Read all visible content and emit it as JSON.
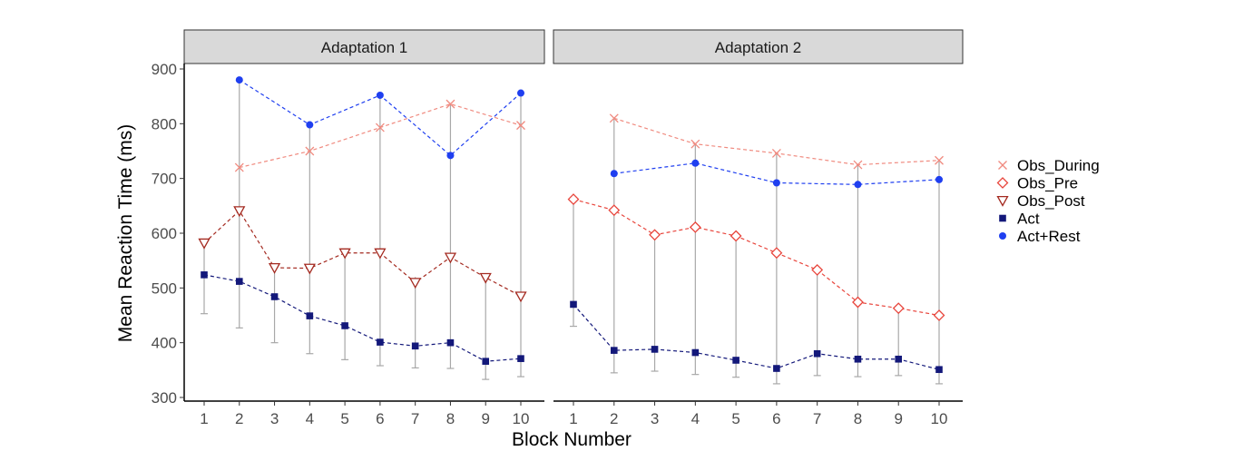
{
  "chart_data": {
    "type": "line",
    "ylabel": "Mean Reaction Time (ms)",
    "xlabel": "Block Number",
    "ylim": [
      300,
      900
    ],
    "xlim": [
      1,
      10
    ],
    "yticks": [
      300,
      400,
      500,
      600,
      700,
      800,
      900
    ],
    "xticks": [
      1,
      2,
      3,
      4,
      5,
      6,
      7,
      8,
      9,
      10
    ],
    "grid": false,
    "legend_position": "right",
    "legend_order": [
      "Obs_During",
      "Obs_Pre",
      "Obs_Post",
      "Act",
      "Act+Rest"
    ],
    "series_style": {
      "Obs_During": {
        "color": "#f08a7f",
        "marker": "x"
      },
      "Obs_Pre": {
        "color": "#e8453c",
        "marker": "diamond-open"
      },
      "Obs_Post": {
        "color": "#a42a20",
        "marker": "triangle-down-open"
      },
      "Act": {
        "color": "#13187a",
        "marker": "square"
      },
      "Act+Rest": {
        "color": "#1f3ff0",
        "marker": "circle"
      }
    },
    "panels": [
      {
        "title": "Adaptation 1",
        "series": [
          {
            "name": "Obs_During",
            "x": [
              2,
              4,
              6,
              8,
              10
            ],
            "y": [
              720,
              750,
              793,
              836,
              797
            ],
            "err_low": [
              null,
              636,
              667,
              600,
              657
            ],
            "err_high": [
              null,
              null,
              null,
              null,
              null
            ]
          },
          {
            "name": "Obs_Post",
            "x": [
              1,
              2,
              3,
              4,
              5,
              6,
              7,
              8,
              9,
              10
            ],
            "y": [
              582,
              641,
              537,
              536,
              564,
              564,
              510,
              556,
              519,
              485
            ],
            "err_low": [
              null,
              542,
              null,
              null,
              479,
              460,
              425,
              461,
              430,
              410
            ],
            "err_high": [
              null,
              null,
              null,
              null,
              null,
              null,
              null,
              null,
              null,
              null
            ]
          },
          {
            "name": "Act",
            "x": [
              1,
              2,
              3,
              4,
              5,
              6,
              7,
              8,
              9,
              10
            ],
            "y": [
              524,
              512,
              484,
              449,
              431,
              401,
              394,
              400,
              366,
              371
            ],
            "err_low": [
              453,
              427,
              400,
              380,
              369,
              358,
              354,
              353,
              333,
              338
            ],
            "err_high": [
              null,
              null,
              null,
              null,
              null,
              null,
              null,
              null,
              null,
              null
            ]
          },
          {
            "name": "Act+Rest",
            "x": [
              2,
              4,
              6,
              8,
              10
            ],
            "y": [
              880,
              798,
              852,
              742,
              856
            ],
            "err_low": [
              null,
              null,
              null,
              null,
              null
            ],
            "err_high": [
              null,
              null,
              null,
              null,
              null
            ]
          }
        ],
        "error_bar_extents": [
          {
            "x": 1,
            "low": 453,
            "high": 590
          },
          {
            "x": 2,
            "low": 427,
            "high": 880
          },
          {
            "x": 3,
            "low": 400,
            "high": 545
          },
          {
            "x": 4,
            "low": 380,
            "high": 798
          },
          {
            "x": 5,
            "low": 369,
            "high": 572
          },
          {
            "x": 6,
            "low": 358,
            "high": 852
          },
          {
            "x": 7,
            "low": 354,
            "high": 520
          },
          {
            "x": 8,
            "low": 353,
            "high": 836
          },
          {
            "x": 9,
            "low": 333,
            "high": 525
          },
          {
            "x": 10,
            "low": 338,
            "high": 856
          }
        ]
      },
      {
        "title": "Adaptation 2",
        "series": [
          {
            "name": "Obs_During",
            "x": [
              2,
              4,
              6,
              8,
              10
            ],
            "y": [
              810,
              763,
              746,
              725,
              733
            ],
            "err_low": [
              null,
              null,
              null,
              null,
              null
            ],
            "err_high": [
              null,
              null,
              null,
              null,
              null
            ]
          },
          {
            "name": "Obs_Pre",
            "x": [
              1,
              2,
              3,
              4,
              5,
              6,
              7,
              8,
              9,
              10
            ],
            "y": [
              662,
              642,
              597,
              611,
              595,
              564,
              533,
              474,
              463,
              450
            ],
            "err_low": [
              604,
              570,
              548,
              546,
              516,
              498,
              474,
              432,
              426,
              418
            ],
            "err_high": [
              null,
              null,
              null,
              null,
              null,
              null,
              null,
              null,
              null,
              null
            ]
          },
          {
            "name": "Act",
            "x": [
              1,
              2,
              3,
              4,
              5,
              6,
              7,
              8,
              9,
              10
            ],
            "y": [
              470,
              386,
              388,
              382,
              368,
              353,
              380,
              370,
              370,
              351
            ],
            "err_low": [
              430,
              345,
              348,
              342,
              337,
              325,
              340,
              338,
              340,
              325
            ],
            "err_high": [
              null,
              null,
              null,
              null,
              null,
              null,
              null,
              null,
              null,
              null
            ]
          },
          {
            "name": "Act+Rest",
            "x": [
              2,
              4,
              6,
              8,
              10
            ],
            "y": [
              709,
              728,
              692,
              689,
              698
            ],
            "err_low": [
              null,
              null,
              null,
              null,
              null
            ],
            "err_high": [
              null,
              null,
              null,
              null,
              null
            ]
          }
        ],
        "error_bar_extents": [
          {
            "x": 1,
            "low": 430,
            "high": 662
          },
          {
            "x": 2,
            "low": 345,
            "high": 810
          },
          {
            "x": 3,
            "low": 348,
            "high": 597
          },
          {
            "x": 4,
            "low": 342,
            "high": 763
          },
          {
            "x": 5,
            "low": 337,
            "high": 595
          },
          {
            "x": 6,
            "low": 325,
            "high": 746
          },
          {
            "x": 7,
            "low": 340,
            "high": 533
          },
          {
            "x": 8,
            "low": 338,
            "high": 725
          },
          {
            "x": 9,
            "low": 340,
            "high": 463
          },
          {
            "x": 10,
            "low": 325,
            "high": 733
          }
        ]
      }
    ]
  }
}
